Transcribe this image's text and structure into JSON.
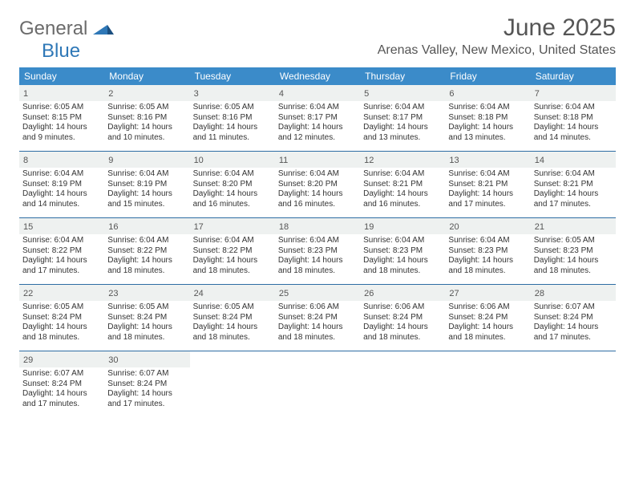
{
  "brand": {
    "part1": "General",
    "part2": "Blue"
  },
  "title": "June 2025",
  "location": "Arenas Valley, New Mexico, United States",
  "colors": {
    "header_bg": "#3b8bc9",
    "row_divider": "#2e6da4",
    "daynum_bg": "#eef1f0",
    "text": "#333333",
    "title_text": "#555555",
    "brand_gray": "#6b6b6b",
    "brand_blue": "#2f78b7"
  },
  "weekdays": [
    "Sunday",
    "Monday",
    "Tuesday",
    "Wednesday",
    "Thursday",
    "Friday",
    "Saturday"
  ],
  "weeks": [
    [
      {
        "n": "1",
        "sr": "Sunrise: 6:05 AM",
        "ss": "Sunset: 8:15 PM",
        "d1": "Daylight: 14 hours",
        "d2": "and 9 minutes."
      },
      {
        "n": "2",
        "sr": "Sunrise: 6:05 AM",
        "ss": "Sunset: 8:16 PM",
        "d1": "Daylight: 14 hours",
        "d2": "and 10 minutes."
      },
      {
        "n": "3",
        "sr": "Sunrise: 6:05 AM",
        "ss": "Sunset: 8:16 PM",
        "d1": "Daylight: 14 hours",
        "d2": "and 11 minutes."
      },
      {
        "n": "4",
        "sr": "Sunrise: 6:04 AM",
        "ss": "Sunset: 8:17 PM",
        "d1": "Daylight: 14 hours",
        "d2": "and 12 minutes."
      },
      {
        "n": "5",
        "sr": "Sunrise: 6:04 AM",
        "ss": "Sunset: 8:17 PM",
        "d1": "Daylight: 14 hours",
        "d2": "and 13 minutes."
      },
      {
        "n": "6",
        "sr": "Sunrise: 6:04 AM",
        "ss": "Sunset: 8:18 PM",
        "d1": "Daylight: 14 hours",
        "d2": "and 13 minutes."
      },
      {
        "n": "7",
        "sr": "Sunrise: 6:04 AM",
        "ss": "Sunset: 8:18 PM",
        "d1": "Daylight: 14 hours",
        "d2": "and 14 minutes."
      }
    ],
    [
      {
        "n": "8",
        "sr": "Sunrise: 6:04 AM",
        "ss": "Sunset: 8:19 PM",
        "d1": "Daylight: 14 hours",
        "d2": "and 14 minutes."
      },
      {
        "n": "9",
        "sr": "Sunrise: 6:04 AM",
        "ss": "Sunset: 8:19 PM",
        "d1": "Daylight: 14 hours",
        "d2": "and 15 minutes."
      },
      {
        "n": "10",
        "sr": "Sunrise: 6:04 AM",
        "ss": "Sunset: 8:20 PM",
        "d1": "Daylight: 14 hours",
        "d2": "and 16 minutes."
      },
      {
        "n": "11",
        "sr": "Sunrise: 6:04 AM",
        "ss": "Sunset: 8:20 PM",
        "d1": "Daylight: 14 hours",
        "d2": "and 16 minutes."
      },
      {
        "n": "12",
        "sr": "Sunrise: 6:04 AM",
        "ss": "Sunset: 8:21 PM",
        "d1": "Daylight: 14 hours",
        "d2": "and 16 minutes."
      },
      {
        "n": "13",
        "sr": "Sunrise: 6:04 AM",
        "ss": "Sunset: 8:21 PM",
        "d1": "Daylight: 14 hours",
        "d2": "and 17 minutes."
      },
      {
        "n": "14",
        "sr": "Sunrise: 6:04 AM",
        "ss": "Sunset: 8:21 PM",
        "d1": "Daylight: 14 hours",
        "d2": "and 17 minutes."
      }
    ],
    [
      {
        "n": "15",
        "sr": "Sunrise: 6:04 AM",
        "ss": "Sunset: 8:22 PM",
        "d1": "Daylight: 14 hours",
        "d2": "and 17 minutes."
      },
      {
        "n": "16",
        "sr": "Sunrise: 6:04 AM",
        "ss": "Sunset: 8:22 PM",
        "d1": "Daylight: 14 hours",
        "d2": "and 18 minutes."
      },
      {
        "n": "17",
        "sr": "Sunrise: 6:04 AM",
        "ss": "Sunset: 8:22 PM",
        "d1": "Daylight: 14 hours",
        "d2": "and 18 minutes."
      },
      {
        "n": "18",
        "sr": "Sunrise: 6:04 AM",
        "ss": "Sunset: 8:23 PM",
        "d1": "Daylight: 14 hours",
        "d2": "and 18 minutes."
      },
      {
        "n": "19",
        "sr": "Sunrise: 6:04 AM",
        "ss": "Sunset: 8:23 PM",
        "d1": "Daylight: 14 hours",
        "d2": "and 18 minutes."
      },
      {
        "n": "20",
        "sr": "Sunrise: 6:04 AM",
        "ss": "Sunset: 8:23 PM",
        "d1": "Daylight: 14 hours",
        "d2": "and 18 minutes."
      },
      {
        "n": "21",
        "sr": "Sunrise: 6:05 AM",
        "ss": "Sunset: 8:23 PM",
        "d1": "Daylight: 14 hours",
        "d2": "and 18 minutes."
      }
    ],
    [
      {
        "n": "22",
        "sr": "Sunrise: 6:05 AM",
        "ss": "Sunset: 8:24 PM",
        "d1": "Daylight: 14 hours",
        "d2": "and 18 minutes."
      },
      {
        "n": "23",
        "sr": "Sunrise: 6:05 AM",
        "ss": "Sunset: 8:24 PM",
        "d1": "Daylight: 14 hours",
        "d2": "and 18 minutes."
      },
      {
        "n": "24",
        "sr": "Sunrise: 6:05 AM",
        "ss": "Sunset: 8:24 PM",
        "d1": "Daylight: 14 hours",
        "d2": "and 18 minutes."
      },
      {
        "n": "25",
        "sr": "Sunrise: 6:06 AM",
        "ss": "Sunset: 8:24 PM",
        "d1": "Daylight: 14 hours",
        "d2": "and 18 minutes."
      },
      {
        "n": "26",
        "sr": "Sunrise: 6:06 AM",
        "ss": "Sunset: 8:24 PM",
        "d1": "Daylight: 14 hours",
        "d2": "and 18 minutes."
      },
      {
        "n": "27",
        "sr": "Sunrise: 6:06 AM",
        "ss": "Sunset: 8:24 PM",
        "d1": "Daylight: 14 hours",
        "d2": "and 18 minutes."
      },
      {
        "n": "28",
        "sr": "Sunrise: 6:07 AM",
        "ss": "Sunset: 8:24 PM",
        "d1": "Daylight: 14 hours",
        "d2": "and 17 minutes."
      }
    ],
    [
      {
        "n": "29",
        "sr": "Sunrise: 6:07 AM",
        "ss": "Sunset: 8:24 PM",
        "d1": "Daylight: 14 hours",
        "d2": "and 17 minutes."
      },
      {
        "n": "30",
        "sr": "Sunrise: 6:07 AM",
        "ss": "Sunset: 8:24 PM",
        "d1": "Daylight: 14 hours",
        "d2": "and 17 minutes."
      },
      {
        "empty": true
      },
      {
        "empty": true
      },
      {
        "empty": true
      },
      {
        "empty": true
      },
      {
        "empty": true
      }
    ]
  ]
}
